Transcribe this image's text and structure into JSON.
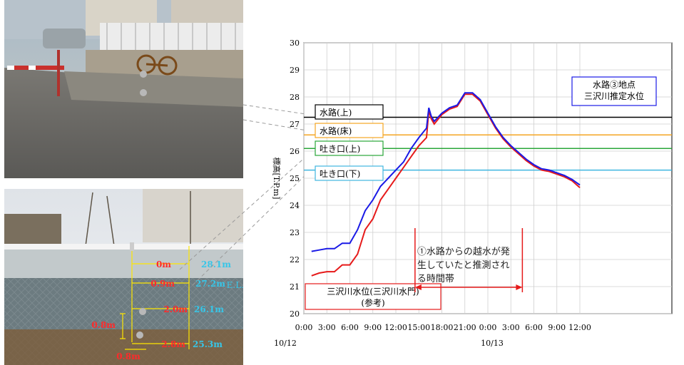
{
  "photo_top": {
    "description_icon": "photo-street-drain-icon",
    "colors": {
      "sky": "#9fb3c4",
      "ground": "#6b6a66",
      "wall": "#c9c2b6"
    }
  },
  "photo_bottom": {
    "description_icon": "photo-riverbank-wall-icon",
    "elevation_labels": [
      {
        "red": "0m",
        "cyan": "28.1m"
      },
      {
        "red": "0.9m",
        "cyan": "27.2m"
      },
      {
        "red": "2.0m",
        "cyan": "26.1m"
      },
      {
        "red": "2.8m",
        "cyan": "25.3m"
      }
    ],
    "el_label": "E.L.",
    "dim_vertical": "0.8m",
    "dim_horizontal": "0.8m"
  },
  "chart_data": {
    "type": "line",
    "ylabel": "標高[T.P.m]",
    "xlabel": "",
    "ylim": [
      20,
      30
    ],
    "yticks": [
      20,
      21,
      22,
      23,
      24,
      25,
      26,
      27,
      28,
      29,
      30
    ],
    "xlim": [
      0,
      48
    ],
    "xtick_hours": [
      0,
      3,
      6,
      9,
      12,
      15,
      18,
      21,
      24,
      27,
      30,
      33,
      36
    ],
    "xtick_labels": [
      "0:00",
      "3:00",
      "6:00",
      "9:00",
      "12:00",
      "15:00",
      "18:00",
      "21:00",
      "0:00",
      "3:00",
      "6:00",
      "9:00",
      "12:00"
    ],
    "date_labels": [
      {
        "label": "10/12",
        "hour": 0
      },
      {
        "label": "10/13",
        "hour": 24
      }
    ],
    "grid": true,
    "reference_lines": [
      {
        "label": "水路(上)",
        "value": 27.25,
        "color": "#000000"
      },
      {
        "label": "水路(床)",
        "value": 26.6,
        "color": "#f5a623"
      },
      {
        "label": "吐き口(上)",
        "value": 26.1,
        "color": "#2aa63a"
      },
      {
        "label": "吐き口(下)",
        "value": 25.3,
        "color": "#3fb6e0"
      }
    ],
    "series": [
      {
        "name": "水路③地点\n三沢川推定水位",
        "color": "#1a1ae6",
        "x": [
          1,
          2,
          3,
          4,
          5,
          6,
          7,
          8,
          9,
          10,
          11,
          12,
          13,
          14,
          15,
          16,
          16.3,
          16.6,
          17,
          18,
          19,
          20,
          21,
          22,
          23,
          24,
          25,
          26,
          27,
          28,
          29,
          30,
          31,
          32,
          33,
          34,
          35,
          36
        ],
        "values": [
          22.3,
          22.35,
          22.4,
          22.4,
          22.6,
          22.6,
          23.1,
          23.8,
          24.2,
          24.7,
          25.0,
          25.3,
          25.6,
          26.1,
          26.5,
          26.85,
          27.6,
          27.3,
          27.1,
          27.4,
          27.6,
          27.7,
          28.15,
          28.15,
          27.9,
          27.4,
          26.9,
          26.5,
          26.2,
          25.95,
          25.7,
          25.5,
          25.35,
          25.3,
          25.2,
          25.1,
          24.95,
          24.75
        ]
      },
      {
        "name": "三沢川水位(三沢川水門)\n(参考)",
        "color": "#e61a1a",
        "x": [
          1,
          2,
          3,
          4,
          5,
          6,
          7,
          8,
          9,
          10,
          11,
          12,
          13,
          14,
          15,
          16,
          16.3,
          16.6,
          17,
          18,
          19,
          20,
          21,
          22,
          23,
          24,
          25,
          26,
          27,
          28,
          29,
          30,
          31,
          32,
          33,
          34,
          35,
          36
        ],
        "values": [
          21.4,
          21.5,
          21.55,
          21.55,
          21.8,
          21.8,
          22.2,
          23.1,
          23.5,
          24.2,
          24.6,
          25.0,
          25.4,
          25.8,
          26.2,
          26.5,
          27.5,
          27.2,
          27.0,
          27.35,
          27.55,
          27.65,
          28.1,
          28.1,
          27.85,
          27.35,
          26.85,
          26.45,
          26.15,
          25.9,
          25.65,
          25.45,
          25.3,
          25.25,
          25.15,
          25.05,
          24.9,
          24.65
        ]
      }
    ],
    "annotation": {
      "text": "①水路からの越水が発\n生していたと推測され\nる時間帯",
      "start_hour": 14.5,
      "end_hour": 28.5,
      "color": "#e61a1a"
    }
  }
}
